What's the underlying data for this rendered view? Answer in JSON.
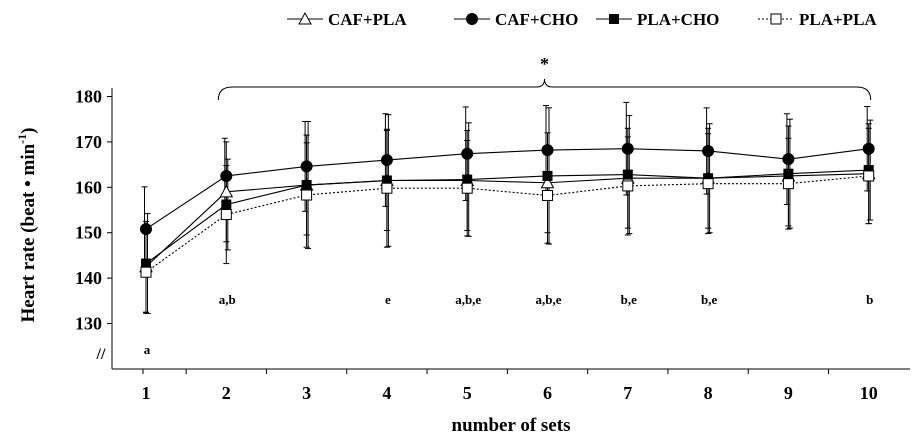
{
  "chart_data": {
    "type": "line",
    "xlabel": "number of sets",
    "ylabel_main": "Heart rate (beat • min",
    "ylabel_sup": "-1",
    "ylabel_close": ")",
    "x": [
      1,
      2,
      3,
      4,
      5,
      6,
      7,
      8,
      9,
      10
    ],
    "x_tick_labels": [
      "1",
      "2",
      "3",
      "4",
      "5",
      "6",
      "7",
      "8",
      "9",
      "10"
    ],
    "y_ticks": [
      130,
      140,
      150,
      160,
      170,
      180
    ],
    "y_tick_labels": [
      "130",
      "140",
      "150",
      "160",
      "170",
      "180"
    ],
    "ylim": [
      125,
      180
    ],
    "axis_break_mark": "//",
    "grid": false,
    "legend_position": "top",
    "series": [
      {
        "name": "CAF+PLA",
        "marker": "open-triangle",
        "line": "solid",
        "values": [
          142.5,
          159,
          160.5,
          161.5,
          161.5,
          161,
          162,
          162,
          162.5,
          163
        ],
        "sd": [
          10,
          11,
          11,
          11,
          11,
          11,
          11,
          11,
          11,
          11
        ]
      },
      {
        "name": "CAF+CHO",
        "marker": "filled-circle",
        "line": "solid",
        "values": [
          150.8,
          162.5,
          164.6,
          166,
          167.4,
          168.2,
          168.5,
          168,
          166.2,
          168.5
        ],
        "sd": [
          9.3,
          8.3,
          9.9,
          10.2,
          10.3,
          9.8,
          10.2,
          9.5,
          10,
          9.3
        ]
      },
      {
        "name": "PLA+CHO",
        "marker": "filled-square",
        "line": "solid",
        "values": [
          143.2,
          156.2,
          160.5,
          161.5,
          161.7,
          162.5,
          162.8,
          162,
          163,
          163.8
        ],
        "sd": [
          11,
          10,
          14,
          14.5,
          12.5,
          15,
          13,
          12,
          12,
          11
        ]
      },
      {
        "name": "PLA+PLA",
        "marker": "open-square",
        "line": "dotted",
        "values": [
          141.3,
          154,
          158.3,
          159.8,
          159.8,
          158.2,
          160.3,
          160.8,
          160.8,
          162.5
        ],
        "sd": [
          9,
          10.8,
          11.5,
          13,
          10.5,
          10.5,
          10.8,
          11,
          10,
          10.5
        ]
      }
    ],
    "annotations": {
      "significance_symbol": "*",
      "letters": [
        {
          "x": 1,
          "text": "a",
          "row": "low"
        },
        {
          "x": 2,
          "text": "a,b",
          "row": "high"
        },
        {
          "x": 4,
          "text": "e",
          "row": "high"
        },
        {
          "x": 5,
          "text": "a,b,e",
          "row": "high"
        },
        {
          "x": 6,
          "text": "a,b,e",
          "row": "high"
        },
        {
          "x": 7,
          "text": "b,e",
          "row": "high"
        },
        {
          "x": 8,
          "text": "b,e",
          "row": "high"
        },
        {
          "x": 10,
          "text": "b",
          "row": "high"
        }
      ]
    }
  }
}
